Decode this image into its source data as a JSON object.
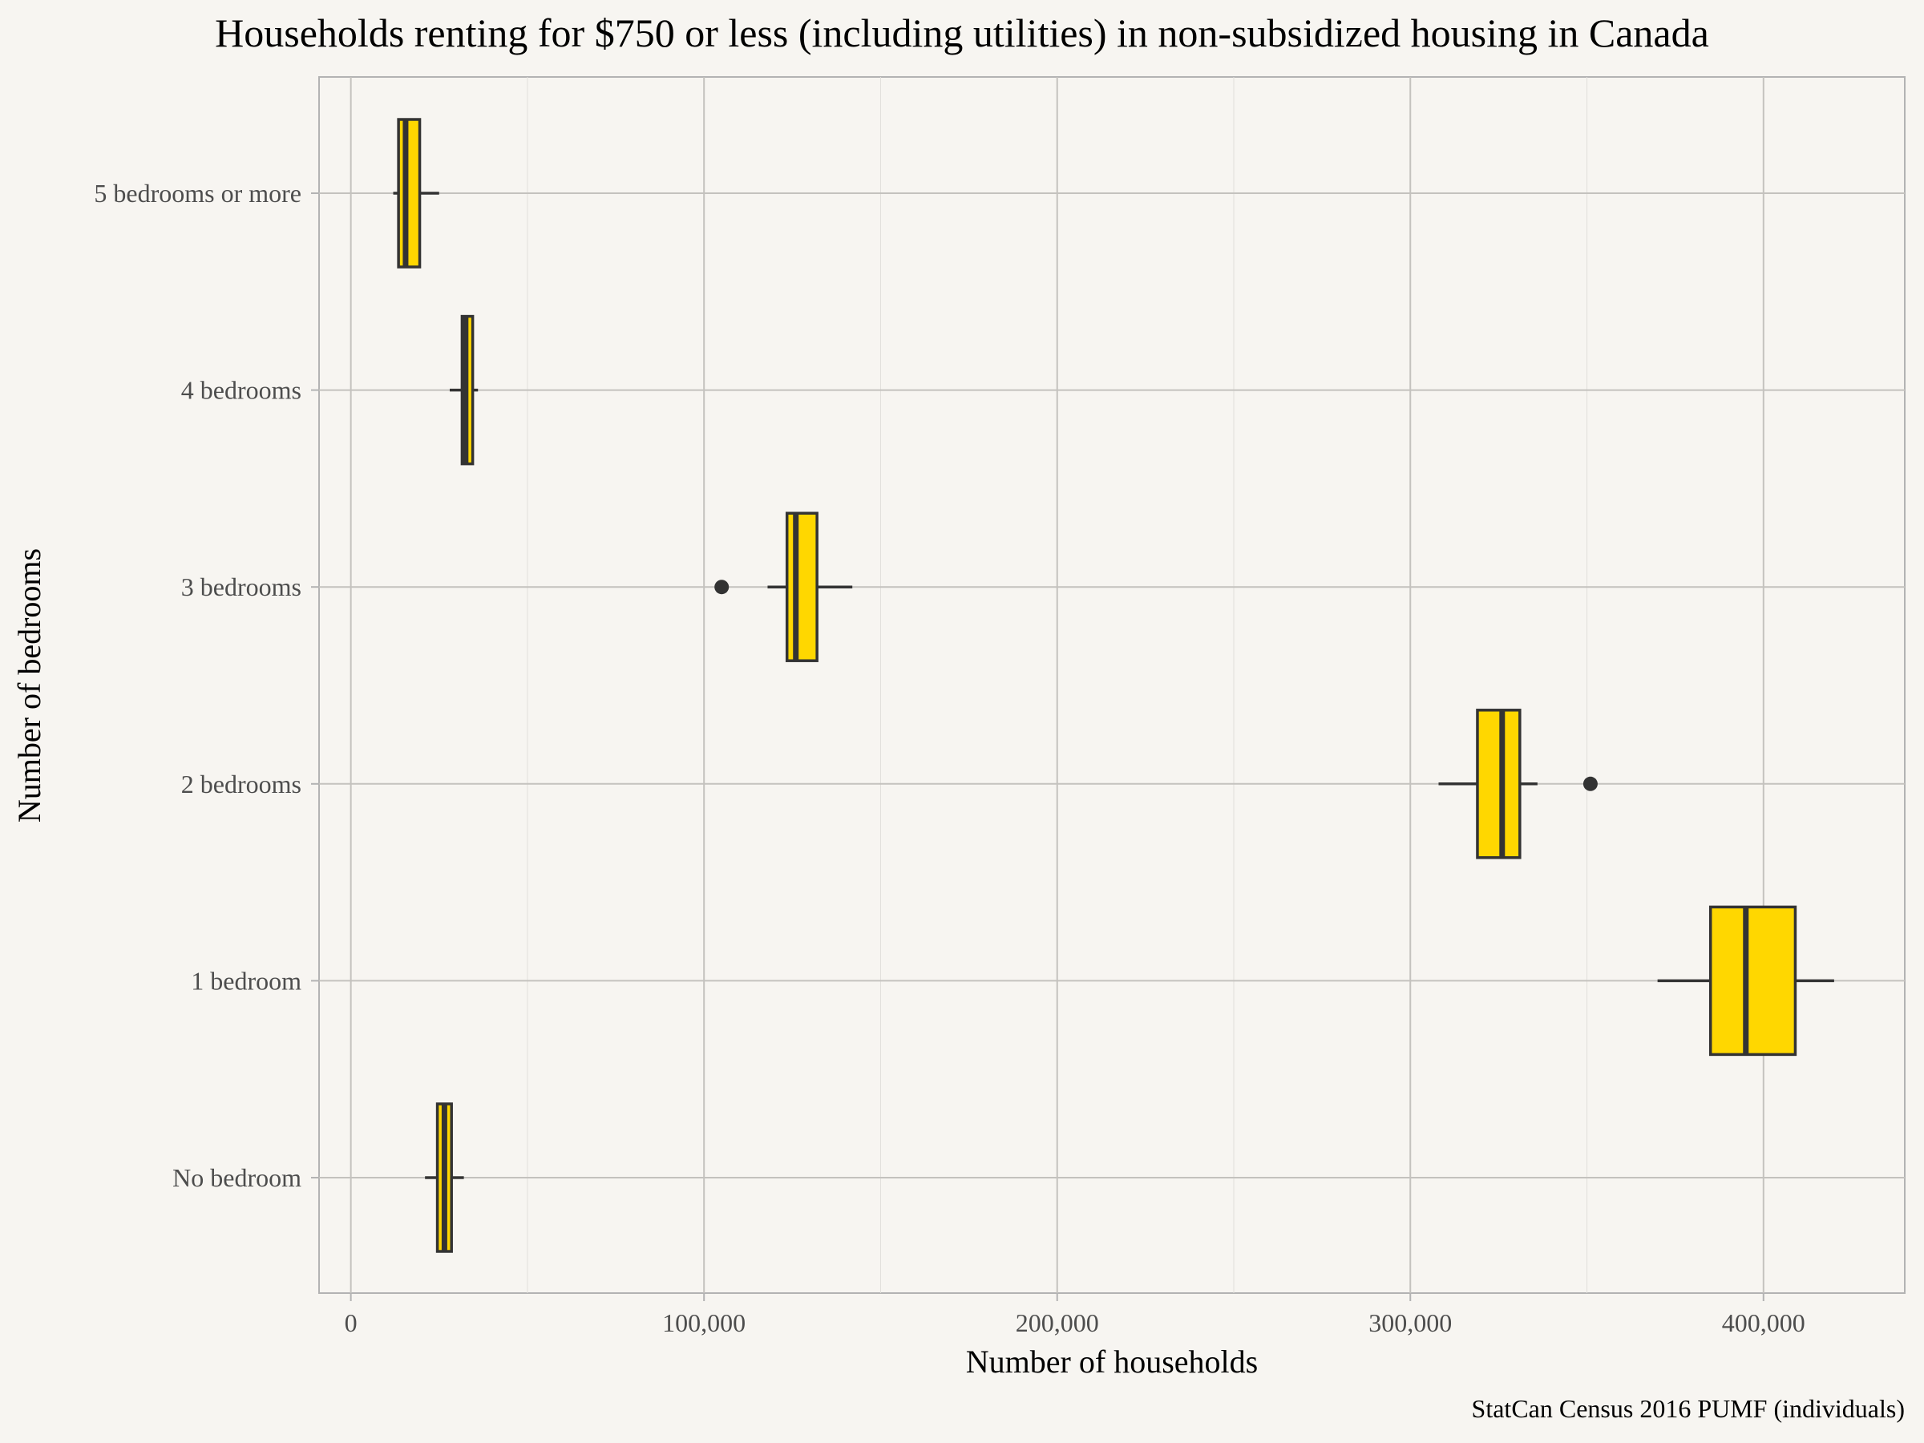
{
  "chart_data": {
    "type": "boxplot",
    "orientation": "horizontal",
    "title": "Households renting for $750 or less (including utilities) in non-subsidized housing in Canada",
    "xlabel": "Number of households",
    "ylabel": "Number of bedrooms",
    "caption": "StatCan Census 2016 PUMF (individuals)",
    "xlim": [
      -9000,
      440000
    ],
    "x_ticks": [
      0,
      100000,
      200000,
      300000,
      400000
    ],
    "x_tick_labels": [
      "0",
      "100,000",
      "200,000",
      "300,000",
      "400,000"
    ],
    "grid": true,
    "box_fill": "#ffd700",
    "box_stroke": "#333333",
    "categories": [
      "No bedroom",
      "1 bedroom",
      "2 bedrooms",
      "3 bedrooms",
      "4 bedrooms",
      "5 bedrooms or more"
    ],
    "boxes": [
      {
        "category": "No bedroom",
        "whisker_low": 21000,
        "q1": 24500,
        "median": 26500,
        "q3": 28500,
        "whisker_high": 32000,
        "outliers": []
      },
      {
        "category": "1 bedroom",
        "whisker_low": 370000,
        "q1": 385000,
        "median": 395000,
        "q3": 409000,
        "whisker_high": 420000,
        "outliers": []
      },
      {
        "category": "2 bedrooms",
        "whisker_low": 308000,
        "q1": 319000,
        "median": 326000,
        "q3": 331000,
        "whisker_high": 336000,
        "outliers": [
          351000
        ]
      },
      {
        "category": "3 bedrooms",
        "whisker_low": 118000,
        "q1": 123500,
        "median": 126000,
        "q3": 132000,
        "whisker_high": 142000,
        "outliers": [
          105000
        ]
      },
      {
        "category": "4 bedrooms",
        "whisker_low": 28000,
        "q1": 31500,
        "median": 32500,
        "q3": 34500,
        "whisker_high": 36000,
        "outliers": []
      },
      {
        "category": "5 bedrooms or more",
        "whisker_low": 12000,
        "q1": 13500,
        "median": 15500,
        "q3": 19500,
        "whisker_high": 25000,
        "outliers": []
      }
    ]
  }
}
